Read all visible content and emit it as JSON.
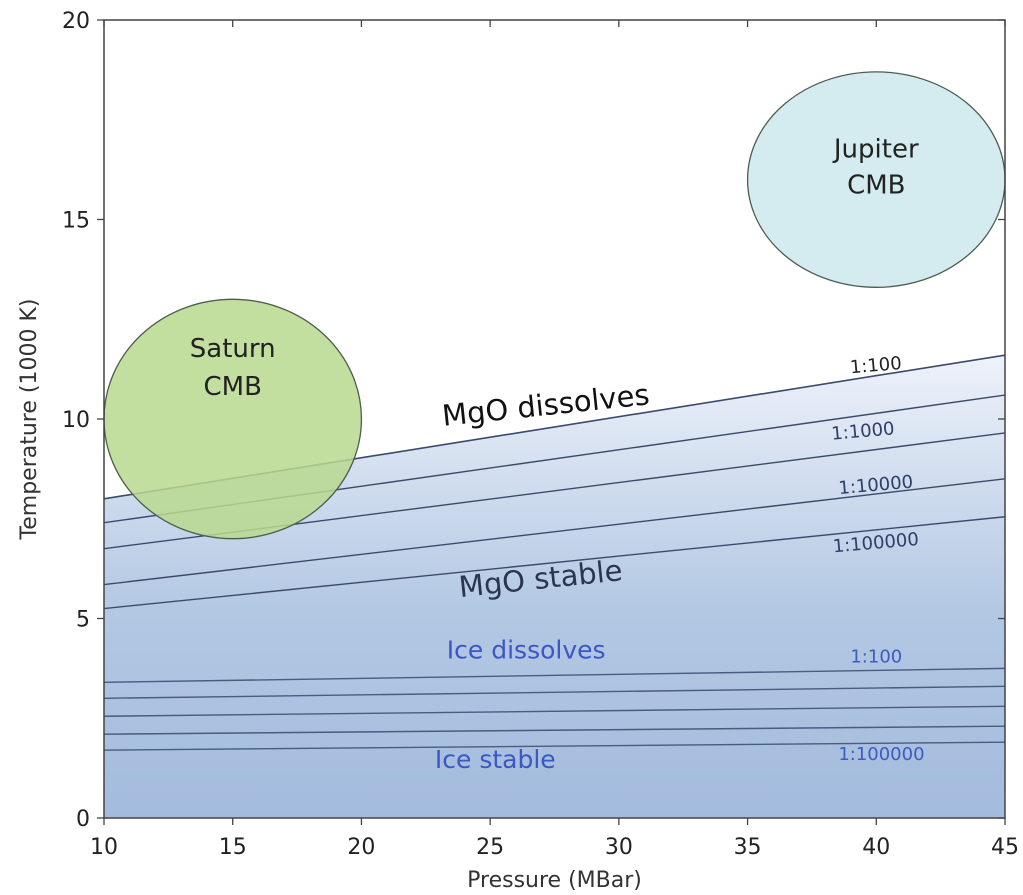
{
  "chart_data": {
    "type": "line",
    "xlabel": "Pressure (MBar)",
    "ylabel": "Temperature (1000 K)",
    "xlim": [
      10,
      45
    ],
    "ylim": [
      0,
      20
    ],
    "xticks": [
      10,
      15,
      20,
      25,
      30,
      35,
      40,
      45
    ],
    "yticks": [
      0,
      5,
      10,
      15,
      20
    ],
    "grid": false,
    "mgo_lines": [
      {
        "x": [
          10,
          45
        ],
        "y": [
          8.0,
          11.6
        ]
      },
      {
        "x": [
          10,
          45
        ],
        "y": [
          7.4,
          10.6
        ]
      },
      {
        "x": [
          10,
          45
        ],
        "y": [
          6.75,
          9.65
        ]
      },
      {
        "x": [
          10,
          45
        ],
        "y": [
          5.85,
          8.5
        ]
      },
      {
        "x": [
          10,
          45
        ],
        "y": [
          5.25,
          7.55
        ]
      }
    ],
    "ice_lines": [
      {
        "x": [
          10,
          45
        ],
        "y": [
          3.4,
          3.75
        ]
      },
      {
        "x": [
          10,
          45
        ],
        "y": [
          3.0,
          3.3
        ]
      },
      {
        "x": [
          10,
          45
        ],
        "y": [
          2.55,
          2.8
        ]
      },
      {
        "x": [
          10,
          45
        ],
        "y": [
          2.1,
          2.3
        ]
      },
      {
        "x": [
          10,
          45
        ],
        "y": [
          1.7,
          1.9
        ]
      }
    ],
    "region_labels": [
      {
        "text": "MgO dissolves",
        "x": 27.2,
        "y": 10.1,
        "style": "black",
        "angle": -6
      },
      {
        "text": "MgO stable",
        "x": 27.0,
        "y": 5.75,
        "style": "dark",
        "angle": -6
      },
      {
        "text": "Ice dissolves",
        "x": 26.4,
        "y": 4.0,
        "style": "blue",
        "angle": 0
      },
      {
        "text": "Ice stable",
        "x": 25.2,
        "y": 1.25,
        "style": "blue",
        "angle": 0
      }
    ],
    "ratio_labels": [
      {
        "text": "1:100",
        "x": 40.0,
        "y": 11.2,
        "color": "#222222",
        "angle": -5
      },
      {
        "text": "1:1000",
        "x": 39.5,
        "y": 9.55,
        "color": "#2e3d6a",
        "angle": -5
      },
      {
        "text": "1:10000",
        "x": 40.0,
        "y": 8.2,
        "color": "#2e3d6a",
        "angle": -5
      },
      {
        "text": "1:100000",
        "x": 40.0,
        "y": 6.75,
        "color": "#2e3d6a",
        "angle": -5
      },
      {
        "text": "1:100",
        "x": 40.0,
        "y": 3.9,
        "color": "#3b5cc0",
        "angle": 0
      },
      {
        "text": "1:100000",
        "x": 40.2,
        "y": 1.45,
        "color": "#3b5cc0",
        "angle": 0
      }
    ],
    "circles": [
      {
        "name": "Saturn",
        "label": [
          "Saturn",
          "CMB"
        ],
        "cx": 15.0,
        "cy": 10.0,
        "rx": 5.0,
        "ry": 3.0,
        "fill": "#b8d98f",
        "label_y": [
          11.55,
          10.6
        ]
      },
      {
        "name": "Jupiter",
        "label": [
          "Jupiter",
          "CMB"
        ],
        "cx": 40.0,
        "cy": 16.0,
        "rx": 5.0,
        "ry": 2.7,
        "fill": "#cde9ec",
        "label_y": [
          16.55,
          15.65
        ]
      }
    ],
    "colors": {
      "fill_top": "#eef2fa",
      "fill_mid": "#b3c8e3",
      "fill_bottom": "#a3bbdd",
      "line": "#3c4a6a"
    }
  }
}
